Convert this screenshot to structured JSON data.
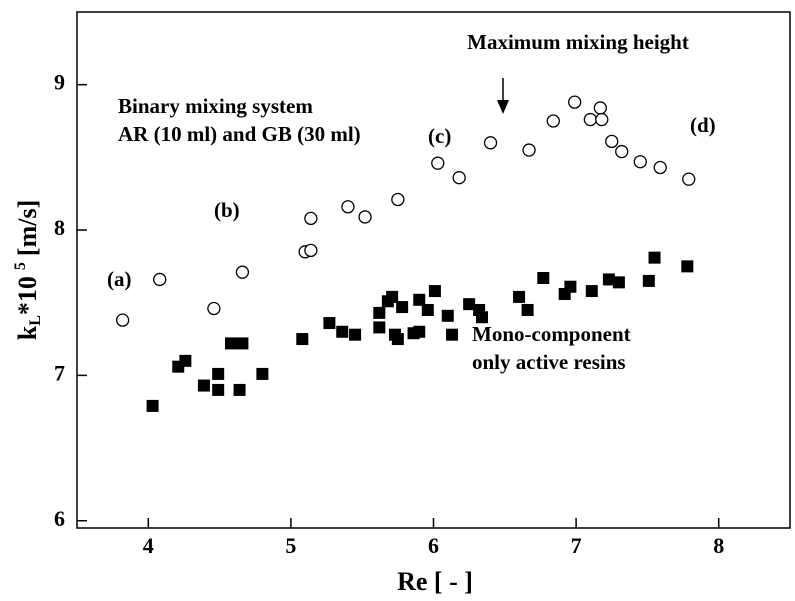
{
  "chart_data": {
    "type": "scatter",
    "xlabel": "Re [ - ]",
    "ylabel": {
      "base": "k",
      "sub": "L",
      "mid": "*10",
      "sup": "5",
      "unit": "[m/s]"
    },
    "xlim": [
      3.5,
      8.5
    ],
    "ylim": [
      5.95,
      9.5
    ],
    "xticks": [
      4,
      5,
      6,
      7,
      8
    ],
    "yticks": [
      6,
      7,
      8,
      9
    ],
    "annotations": [
      "Maximum mixing height",
      "Binary mixing system",
      "AR (10 ml) and GB (30 ml)",
      "(a)",
      "(b)",
      "(c)",
      "(d)",
      "Mono-component",
      "only active resins"
    ],
    "series": [
      {
        "marker": "open-circle",
        "color": "#000000",
        "x": [
          3.82,
          4.08,
          4.46,
          4.66,
          5.1,
          5.14,
          5.14,
          5.4,
          5.52,
          5.75,
          6.03,
          6.18,
          6.4,
          6.67,
          6.84,
          6.99,
          7.1,
          7.17,
          7.18,
          7.25,
          7.32,
          7.45,
          7.59,
          7.79
        ],
        "y": [
          7.38,
          7.66,
          7.46,
          7.71,
          7.85,
          7.86,
          8.08,
          8.16,
          8.09,
          8.21,
          8.46,
          8.36,
          8.6,
          8.55,
          8.75,
          8.88,
          8.76,
          8.84,
          8.76,
          8.61,
          8.54,
          8.47,
          8.43,
          8.35
        ]
      },
      {
        "marker": "filled-square",
        "color": "#000000",
        "x": [
          4.03,
          4.21,
          4.26,
          4.39,
          4.49,
          4.49,
          4.58,
          4.66,
          4.64,
          4.8,
          5.08,
          5.27,
          5.36,
          5.45,
          5.62,
          5.62,
          5.68,
          5.71,
          5.73,
          5.75,
          5.78,
          5.86,
          5.9,
          5.9,
          5.96,
          6.01,
          6.1,
          6.13,
          6.25,
          6.32,
          6.34,
          6.6,
          6.66,
          6.77,
          6.92,
          6.96,
          7.11,
          7.23,
          7.3,
          7.51,
          7.55,
          7.78
        ],
        "y": [
          6.79,
          7.06,
          7.1,
          6.93,
          7.01,
          6.9,
          7.22,
          7.22,
          6.9,
          7.01,
          7.25,
          7.36,
          7.3,
          7.28,
          7.33,
          7.43,
          7.51,
          7.54,
          7.28,
          7.25,
          7.47,
          7.29,
          7.52,
          7.3,
          7.45,
          7.58,
          7.41,
          7.28,
          7.49,
          7.45,
          7.4,
          7.54,
          7.45,
          7.67,
          7.56,
          7.61,
          7.58,
          7.66,
          7.64,
          7.65,
          7.81,
          7.75
        ]
      }
    ]
  }
}
